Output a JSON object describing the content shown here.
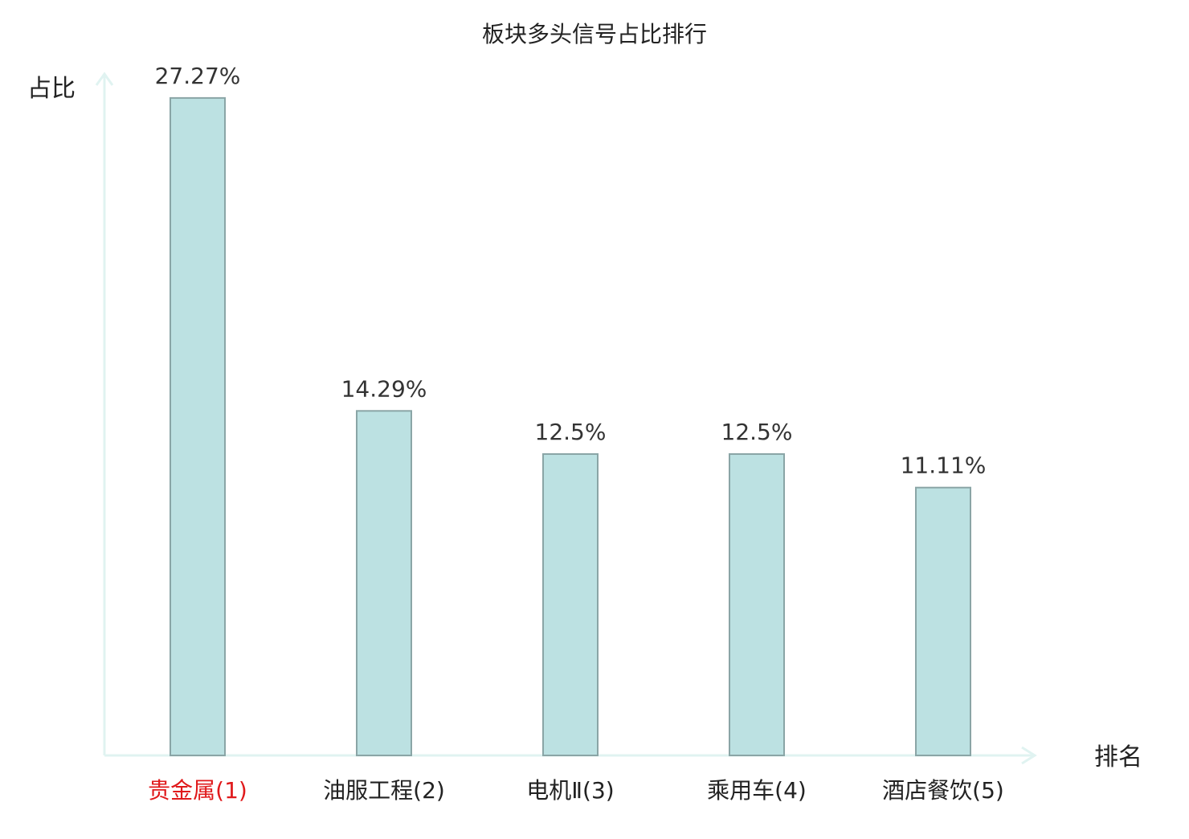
{
  "chart_data": {
    "type": "bar",
    "title": "板块多头信号占比排行",
    "xlabel": "排名",
    "ylabel": "占比",
    "categories": [
      "贵金属(1)",
      "油服工程(2)",
      "电机Ⅱ(3)",
      "乘用车(4)",
      "酒店餐饮(5)"
    ],
    "values": [
      27.27,
      14.29,
      12.5,
      12.5,
      11.11
    ],
    "value_labels": [
      "27.27%",
      "14.29%",
      "12.5%",
      "12.5%",
      "11.11%"
    ],
    "ylim": [
      0,
      30
    ],
    "grid": false,
    "legend": "none",
    "colors": {
      "bar_fill": "#bce1e2",
      "bar_stroke": "#8aa5a6",
      "axis": "#e0f3f1",
      "highlight_label": "#e0191b",
      "label": "#222222"
    },
    "highlight_category_index": 0
  }
}
